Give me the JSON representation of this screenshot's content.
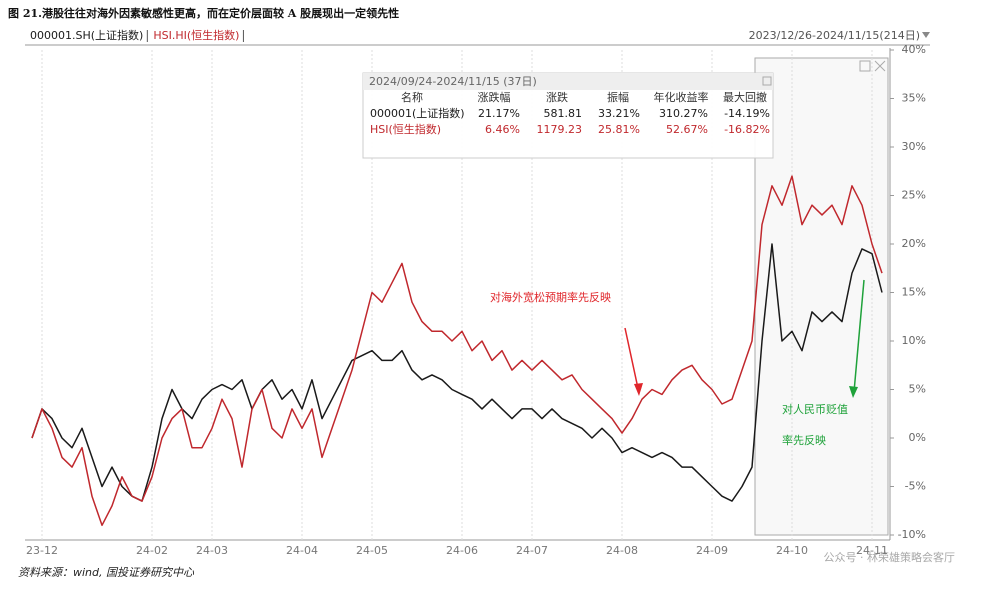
{
  "chart_data": {
    "type": "line",
    "title": "图 21.港股往往对海外因素敏感性更高，而在定价层面较 A 股展现出一定领先性",
    "date_range": "2023/12/26-2024/11/15(214日)",
    "source": "资料来源：wind,  国投证券研究中心",
    "watermark": "公众号 · 林荣雄策略会客厅",
    "categories": [
      null,
      "23-12",
      null,
      null,
      null,
      null,
      null,
      null,
      null,
      null,
      null,
      null,
      "24-02",
      null,
      null,
      null,
      null,
      null,
      "24-03",
      null,
      null,
      null,
      null,
      null,
      null,
      null,
      null,
      "24-04",
      null,
      null,
      null,
      null,
      null,
      null,
      "24-05",
      null,
      null,
      null,
      null,
      null,
      null,
      null,
      null,
      "24-06",
      null,
      null,
      null,
      null,
      null,
      null,
      "24-07",
      null,
      null,
      null,
      null,
      null,
      null,
      null,
      null,
      "24-08",
      null,
      null,
      null,
      null,
      null,
      null,
      null,
      null,
      "24-09",
      null,
      null,
      null,
      null,
      null,
      null,
      null,
      "24-10",
      null,
      null,
      null,
      null,
      null,
      null,
      null,
      "24-11",
      null
    ],
    "series": [
      {
        "name": "000001.SH(上证指数)",
        "color": "#1a1a1a",
        "values": [
          0,
          3,
          2,
          0,
          -1,
          1,
          -2,
          -5,
          -3,
          -5,
          -6,
          -6.5,
          -3,
          2,
          5,
          3,
          2,
          4,
          5,
          5.5,
          5,
          6,
          3,
          5,
          6,
          4,
          5,
          3,
          6,
          2,
          4,
          6,
          8,
          8.5,
          9,
          8,
          8,
          9,
          7,
          6,
          6.5,
          6,
          5,
          4.5,
          4,
          3,
          4,
          3,
          2,
          3,
          3,
          2,
          3,
          2,
          1.5,
          1,
          0,
          1,
          0,
          -1.5,
          -1,
          -1.5,
          -2,
          -1.5,
          -2,
          -3,
          -3,
          -4,
          -5,
          -6,
          -6.5,
          -5,
          -3,
          10,
          20,
          10,
          11,
          9,
          13,
          12,
          13,
          12,
          17,
          19.5,
          19,
          15
        ]
      },
      {
        "name": "HSI.HI(恒生指数)",
        "color": "#c0282d",
        "values": [
          0,
          3,
          1,
          -2,
          -3,
          -1,
          -6,
          -9,
          -7,
          -4,
          -6,
          -6.5,
          -4,
          0,
          2,
          3,
          -1,
          -1,
          1,
          4,
          2,
          -3,
          3,
          5,
          1,
          0,
          3,
          1,
          3,
          -2,
          1,
          4,
          7,
          11,
          15,
          14,
          16,
          18,
          14,
          12,
          11,
          11,
          10,
          11,
          9,
          10,
          8,
          9,
          7,
          8,
          7,
          8,
          7,
          6,
          6.5,
          5,
          4,
          3,
          2,
          0.5,
          2,
          4,
          5,
          4.5,
          6,
          7,
          7.5,
          6,
          5,
          3.5,
          4,
          7,
          10,
          22,
          26,
          24,
          27,
          22,
          24,
          23,
          24,
          22,
          26,
          24,
          20,
          17
        ]
      }
    ],
    "ylim": [
      -10,
      40
    ],
    "yticks": [
      {
        "value": 40,
        "label": "40%"
      },
      {
        "value": 35,
        "label": "35%"
      },
      {
        "value": 30,
        "label": "30%"
      },
      {
        "value": 25,
        "label": "25%"
      },
      {
        "value": 20,
        "label": "20%"
      },
      {
        "value": 15,
        "label": "15%"
      },
      {
        "value": 10,
        "label": "10%"
      },
      {
        "value": 5,
        "label": "5%"
      },
      {
        "value": 0,
        "label": "0%"
      },
      {
        "value": -5,
        "label": "-5%"
      },
      {
        "value": -10,
        "label": "-10%"
      }
    ],
    "xgrid": true,
    "annotations": [
      {
        "lines": [
          "对海外宽松预期率先反映"
        ],
        "color": "#e0262b"
      },
      {
        "lines": [
          "对人民币贬值",
          "率先反映"
        ],
        "color": "#1fa23a"
      }
    ]
  },
  "table": {
    "title": "2024/09/24-2024/11/15 (37日)",
    "columns": [
      "名称",
      "涨跌幅",
      "涨跌",
      "振幅",
      "年化收益率",
      "最大回撤"
    ],
    "rows": [
      [
        "000001(上证指数)",
        "21.17%",
        "581.81",
        "33.21%",
        "310.27%",
        "-14.19%"
      ],
      [
        "HSI(恒生指数)",
        "6.46%",
        "1179.23",
        "25.81%",
        "52.67%",
        "-16.82%"
      ]
    ]
  }
}
